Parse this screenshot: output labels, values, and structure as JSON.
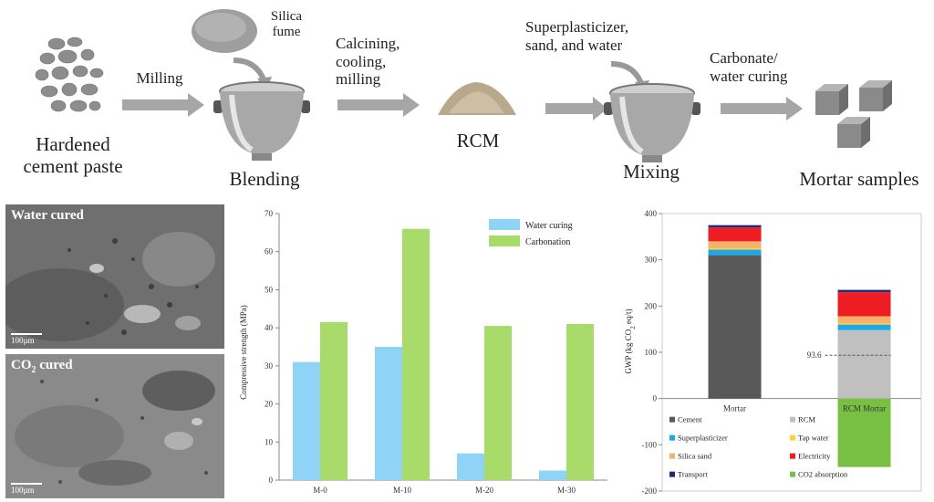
{
  "process": {
    "hardened_cement_paste": "Hardened\ncement paste",
    "milling": "Milling",
    "silica_fume": "Silica\nfume",
    "blending": "Blending",
    "calcining": "Calcining,\ncooling,\nmilling",
    "rcm": "RCM",
    "superplasticizer": "Superplasticizer,\nsand, and water",
    "mixing": "Mixing",
    "carbonate": "Carbonate/\nwater curing",
    "mortar_samples": "Mortar samples"
  },
  "micrographs": {
    "water_cured": "Water cured",
    "co2_prefix": "CO",
    "co2_sub": "2",
    "co2_suffix": " cured",
    "scale": "100µm"
  },
  "colors": {
    "water_curing": "#8fd3f6",
    "carbonation": "#a9db6a",
    "cement": "#595959",
    "rcm": "#c0c0c0",
    "superplasticizer": "#1ea7e6",
    "tap_water": "#ffd43b",
    "silica_sand": "#f6b26b",
    "electricity": "#ee1d23",
    "transport": "#1f2a7a",
    "co2_absorption": "#77c043"
  },
  "chart_data": [
    {
      "type": "bar",
      "title": "",
      "xlabel": "",
      "ylabel": "Compressive strength (MPa)",
      "categories": [
        "M-0",
        "M-10",
        "M-20",
        "M-30"
      ],
      "ylim": [
        0,
        70
      ],
      "yticks": [
        0,
        10,
        20,
        30,
        40,
        50,
        60,
        70
      ],
      "legend": "top-right",
      "series": [
        {
          "name": "Water curing",
          "values": [
            31,
            35,
            7,
            2.5
          ]
        },
        {
          "name": "Carbonation",
          "values": [
            41.5,
            66,
            40.5,
            41
          ]
        }
      ]
    },
    {
      "type": "stacked-bar",
      "title": "",
      "ylabel": "GWP (kg CO2 eq/t)",
      "ylabel_parts": [
        "GWP (kg CO",
        "2",
        " eq/t)"
      ],
      "categories": [
        "Mortar",
        "RCM Mortar"
      ],
      "ylim": [
        -200,
        400
      ],
      "yticks": [
        400,
        300,
        200,
        100,
        0,
        -100,
        -200
      ],
      "annotation": {
        "text": "93.6",
        "value": 93.6
      },
      "legend": "bottom",
      "series": [
        {
          "name": "Cement",
          "values": [
            310,
            0
          ]
        },
        {
          "name": "RCM",
          "values": [
            0,
            148
          ]
        },
        {
          "name": "Superplasticizer",
          "values": [
            12,
            12
          ]
        },
        {
          "name": "Tap water",
          "values": [
            3,
            3
          ]
        },
        {
          "name": "Silica sand",
          "values": [
            15,
            15
          ]
        },
        {
          "name": "Electricity",
          "values": [
            30,
            52
          ]
        },
        {
          "name": "Transport",
          "values": [
            5,
            5
          ]
        },
        {
          "name": "CO2 absorption",
          "values": [
            0,
            -148
          ]
        }
      ]
    }
  ]
}
